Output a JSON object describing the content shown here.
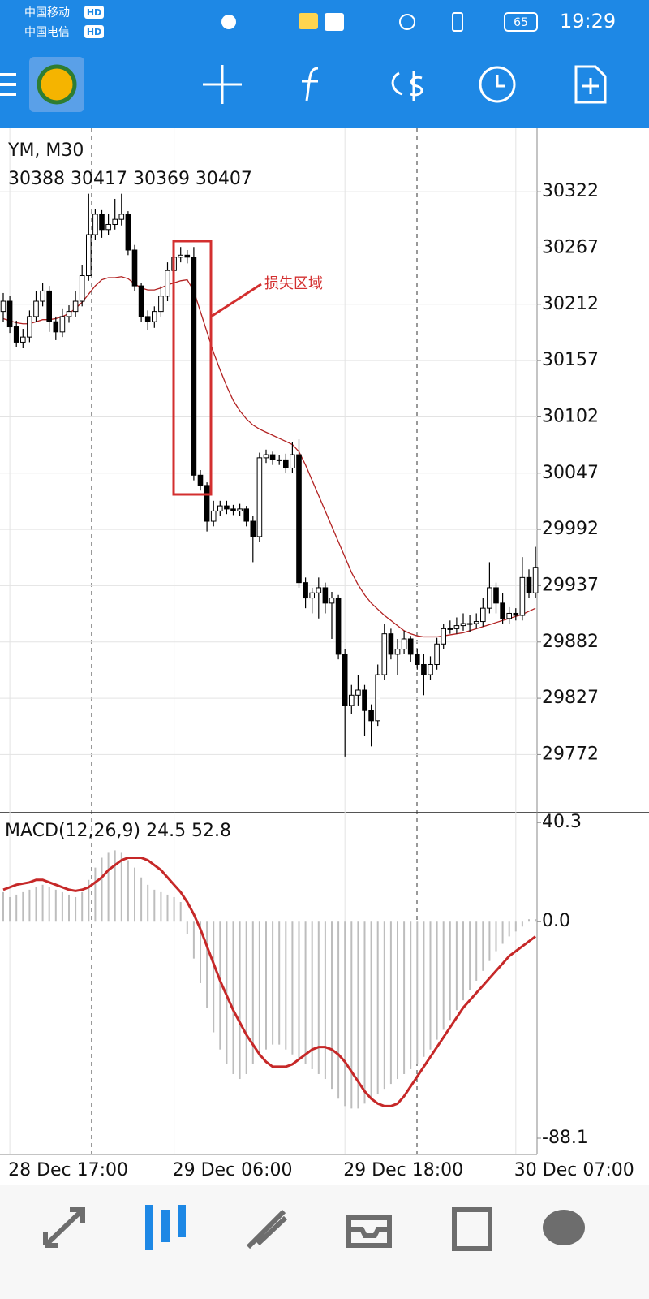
{
  "status_bar": {
    "carrier_1": "中国移动",
    "carrier_2": "中国电信",
    "hd": "HD",
    "battery": "65",
    "time": "19:29"
  },
  "chart_data": [
    {
      "type": "candlestick",
      "title": "YM, M30",
      "subtitle": "30388 30417 30369 30407",
      "annotation": "损失区域",
      "categories": [
        null,
        "28 Dec 17:00",
        null,
        null,
        null,
        null,
        null,
        null,
        null,
        null,
        null,
        null,
        null,
        null,
        null,
        null,
        null,
        null,
        null,
        null,
        null,
        null,
        null,
        null,
        null,
        null,
        "29 Dec 06:00",
        null,
        null,
        null,
        null,
        null,
        null,
        null,
        null,
        null,
        null,
        null,
        null,
        null,
        null,
        null,
        null,
        null,
        null,
        null,
        null,
        null,
        null,
        null,
        null,
        null,
        "29 Dec 18:00",
        null,
        null,
        null,
        null,
        null,
        null,
        null,
        null,
        null,
        null,
        null,
        null,
        null,
        null,
        null,
        null,
        null,
        null,
        null,
        null,
        null,
        null,
        null,
        null,
        null,
        "30 Dec 07:00",
        null,
        null,
        null
      ],
      "open": [
        30205,
        30215,
        30190,
        30175,
        30180,
        30200,
        30215,
        30225,
        30195,
        30185,
        30200,
        30205,
        30215,
        30240,
        30280,
        30300,
        30285,
        30290,
        30295,
        30300,
        30265,
        30230,
        30200,
        30195,
        30205,
        30220,
        30245,
        30258,
        30260,
        30258,
        30045,
        30035,
        30000,
        30010,
        30015,
        30012,
        30010,
        30012,
        30000,
        29985,
        30062,
        30065,
        30060,
        30060,
        30052,
        30065,
        29940,
        29925,
        29930,
        29935,
        29920,
        29925,
        29870,
        29820,
        29830,
        29835,
        29815,
        29805,
        29850,
        29890,
        29870,
        29875,
        29885,
        29870,
        29860,
        29850,
        29860,
        29880,
        29895,
        29895,
        29898,
        29900,
        29900,
        29902,
        29915,
        29935,
        29920,
        29905,
        29910,
        29908,
        29945,
        29930
      ],
      "high": [
        30223,
        30220,
        30196,
        30188,
        30206,
        30225,
        30233,
        30230,
        30200,
        30208,
        30211,
        30225,
        30250,
        30320,
        30305,
        30304,
        30300,
        30315,
        30320,
        30303,
        30270,
        30233,
        30206,
        30210,
        30230,
        30253,
        30263,
        30268,
        30265,
        30268,
        30050,
        30038,
        30020,
        30020,
        30020,
        30016,
        30017,
        30015,
        30005,
        30067,
        30070,
        30068,
        30065,
        30066,
        30077,
        30080,
        29945,
        29935,
        29945,
        29940,
        29931,
        29928,
        29875,
        29840,
        29850,
        29840,
        29821,
        29860,
        29900,
        29895,
        29885,
        29893,
        29888,
        29875,
        29870,
        29868,
        29886,
        29900,
        29903,
        29906,
        29910,
        29908,
        29910,
        29925,
        29960,
        29940,
        29930,
        29916,
        29915,
        29965,
        29953,
        29975
      ],
      "low": [
        30195,
        30184,
        30170,
        30169,
        30175,
        30195,
        30210,
        30185,
        30177,
        30180,
        30194,
        30200,
        30210,
        30235,
        30275,
        30277,
        30280,
        30285,
        30289,
        30260,
        30225,
        30195,
        30187,
        30189,
        30200,
        30215,
        30240,
        30253,
        30252,
        30040,
        30030,
        29990,
        29995,
        30005,
        30007,
        30006,
        30005,
        29995,
        29960,
        29980,
        30057,
        30055,
        30055,
        30047,
        30047,
        29935,
        29915,
        29910,
        29905,
        29910,
        29885,
        29865,
        29770,
        29812,
        29820,
        29790,
        29780,
        29800,
        29845,
        29865,
        29850,
        29870,
        29862,
        29855,
        29830,
        29845,
        29855,
        29875,
        29890,
        29890,
        29893,
        29892,
        29895,
        29897,
        29910,
        29910,
        29900,
        29900,
        29903,
        29903,
        29925,
        29925
      ],
      "close": [
        30215,
        30190,
        30175,
        30180,
        30200,
        30215,
        30225,
        30195,
        30185,
        30200,
        30205,
        30215,
        30240,
        30280,
        30300,
        30285,
        30290,
        30295,
        30300,
        30265,
        30230,
        30200,
        30195,
        30205,
        30220,
        30245,
        30258,
        30260,
        30258,
        30045,
        30035,
        30000,
        30010,
        30015,
        30012,
        30010,
        30012,
        30000,
        29985,
        30062,
        30065,
        30060,
        30060,
        30052,
        30065,
        29940,
        29925,
        29930,
        29935,
        29920,
        29925,
        29870,
        29820,
        29830,
        29835,
        29815,
        29805,
        29850,
        29890,
        29870,
        29875,
        29885,
        29870,
        29860,
        29850,
        29860,
        29880,
        29895,
        29895,
        29898,
        29900,
        29900,
        29902,
        29915,
        29935,
        29920,
        29905,
        29910,
        29908,
        29945,
        29930,
        29955
      ],
      "ma_values": [
        30198,
        30196,
        30194,
        30193,
        30193,
        30195,
        30197,
        30197,
        30198,
        30200,
        30203,
        30208,
        30214,
        30222,
        30230,
        30236,
        30238,
        30238,
        30239,
        30237,
        30232,
        30228,
        30226,
        30226,
        30228,
        30231,
        30233,
        30235,
        30236,
        30225,
        30205,
        30185,
        30165,
        30148,
        30132,
        30118,
        30108,
        30100,
        30094,
        30090,
        30087,
        30084,
        30081,
        30078,
        30075,
        30068,
        30055,
        30040,
        30025,
        30010,
        29995,
        29980,
        29965,
        29950,
        29938,
        29928,
        29920,
        29914,
        29908,
        29903,
        29898,
        29893,
        29890,
        29888,
        29887,
        29887,
        29887,
        29888,
        29889,
        29890,
        29891,
        29893,
        29895,
        29897,
        29899,
        29901,
        29903,
        29905,
        29907,
        29909,
        29912,
        29915
      ],
      "ma_color": "#b22222",
      "up_color": "#ffffff",
      "down_color": "#000000",
      "ylim": [
        29716,
        30384
      ],
      "yticks": [
        30322,
        30267,
        30212,
        30157,
        30102,
        30047,
        29992,
        29937,
        29882,
        29827,
        29772
      ],
      "grid": true
    },
    {
      "type": "macd",
      "title": "MACD(12,26,9) 24.5 52.8",
      "values": [
        12,
        10,
        11,
        12,
        13,
        14,
        15,
        14,
        13,
        12,
        11,
        10,
        12,
        17,
        22,
        26,
        28,
        29,
        28,
        25,
        22,
        18,
        15,
        13,
        12,
        11,
        10,
        8,
        -5,
        -15,
        -25,
        -35,
        -45,
        -52,
        -58,
        -62,
        -64,
        -62,
        -58,
        -55,
        -52,
        -50,
        -50,
        -52,
        -54,
        -56,
        -58,
        -60,
        -62,
        -64,
        -68,
        -72,
        -75,
        -76,
        -76,
        -74,
        -72,
        -70,
        -68,
        -66,
        -64,
        -62,
        -60,
        -58,
        -55,
        -52,
        -48,
        -44,
        -40,
        -36,
        -32,
        -28,
        -24,
        -20,
        -16,
        -12,
        -9,
        -6,
        -4,
        -2,
        1,
        1
      ],
      "signal": [
        13,
        14,
        15,
        15.5,
        16,
        17,
        17,
        16,
        15,
        14,
        13,
        12.5,
        13,
        14,
        16,
        18,
        21,
        23,
        25,
        26,
        26,
        26,
        25,
        23,
        21,
        18,
        15,
        12,
        8,
        3,
        -3,
        -10,
        -17,
        -24,
        -30,
        -36,
        -41,
        -46,
        -50,
        -54,
        -57,
        -59,
        -59,
        -59,
        -58,
        -56,
        -54,
        -52,
        -51,
        -51,
        -52,
        -54,
        -57,
        -61,
        -65,
        -69,
        -72,
        -74,
        -75,
        -75,
        -74,
        -71,
        -67,
        -63,
        -59,
        -55,
        -51,
        -47,
        -43,
        -39,
        -35,
        -32,
        -29,
        -26,
        -23,
        -20,
        -17,
        -14,
        -12,
        -10,
        -8,
        -6
      ],
      "color": "#bdbdbd",
      "signal_color": "#c62828",
      "ylim": [
        -94.7,
        44
      ],
      "yticks": [
        40.3,
        {
          "value": 0,
          "label": "0.0"
        },
        -88.1
      ]
    }
  ]
}
